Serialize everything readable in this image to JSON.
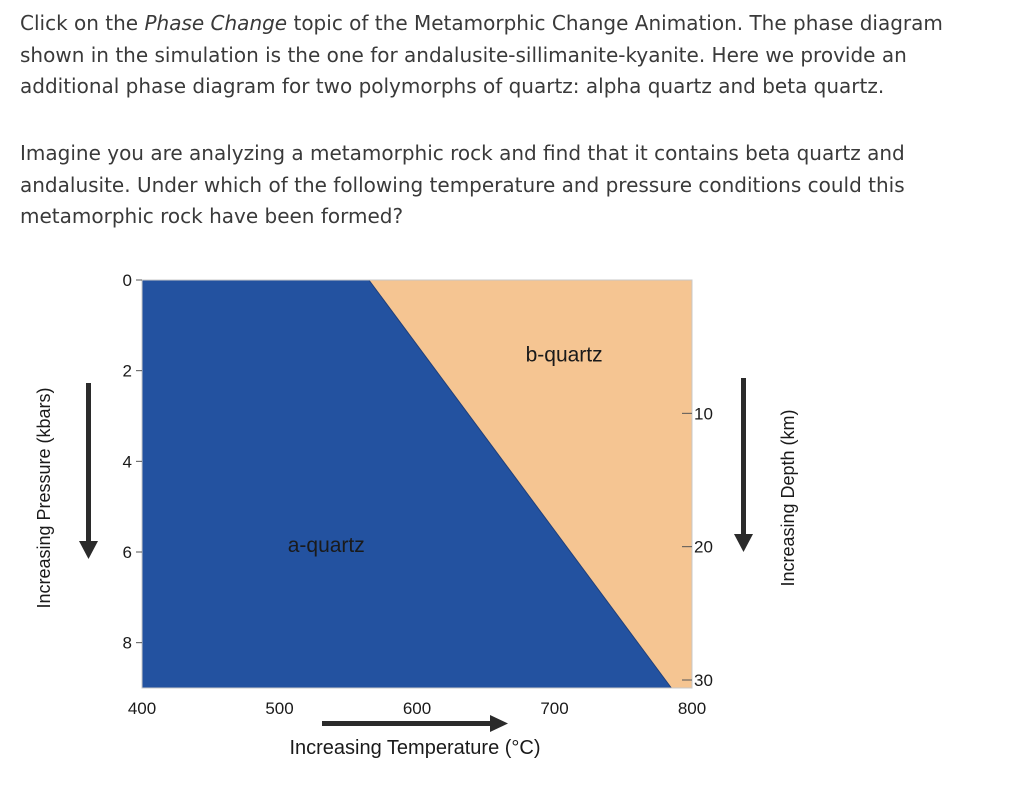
{
  "question": {
    "p1_before": "Click on the ",
    "p1_topic": "Phase Change",
    "p1_after": " topic of the Metamorphic Change Animation. The phase diagram shown in the simulation is the one for andalusite-sillimanite-kyanite. Here we provide an additional phase diagram for two polymorphs of quartz: alpha quartz and beta quartz.",
    "p2": "Imagine you are analyzing a metamorphic rock and find that it contains beta quartz and andalusite. Under which of the following temperature and pressure conditions could this metamorphic rock have been formed?"
  },
  "colors": {
    "alpha": "#2352a0",
    "beta": "#f5c592",
    "text": "#3a3a3a"
  },
  "chart_data": {
    "type": "area",
    "xlabel": "Increasing Temperature (°C)",
    "ylabel": "Increasing Pressure (kbars)",
    "y2label": "Increasing Depth (km)",
    "xlim": [
      400,
      800
    ],
    "ylim": [
      0,
      9
    ],
    "y_inverted": true,
    "x_ticks": [
      400,
      500,
      600,
      700,
      800
    ],
    "y_ticks": [
      0,
      2,
      4,
      6,
      8
    ],
    "y2_ticks": [
      10,
      20,
      30
    ],
    "boundary": {
      "x": [
        565,
        785
      ],
      "y": [
        0,
        9
      ]
    },
    "regions": [
      {
        "name": "a-quartz",
        "side": "low temperature",
        "color": "#2352a0",
        "label_at": [
          534,
          6
        ]
      },
      {
        "name": "b-quartz",
        "side": "high temperature",
        "color": "#f5c592",
        "label_at": [
          707,
          1.8
        ]
      }
    ]
  }
}
